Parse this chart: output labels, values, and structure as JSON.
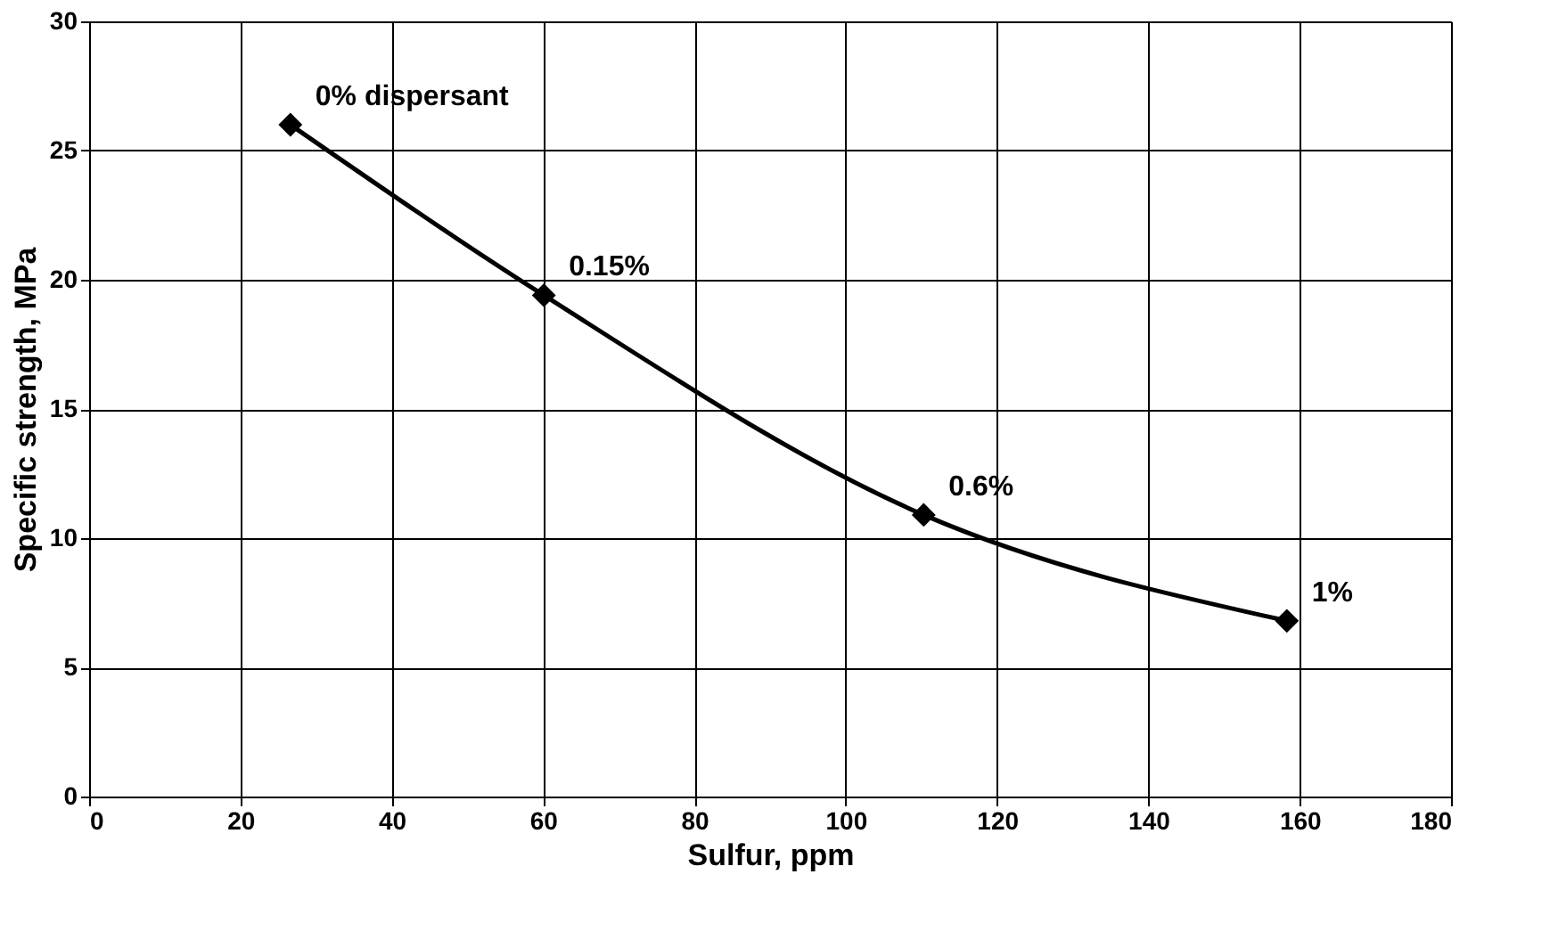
{
  "chart_data": {
    "type": "line",
    "xlabel": "Sulfur, ppm",
    "ylabel": "Specific strength, MPa",
    "x": [
      26.6,
      60.1,
      110.3,
      158.3
    ],
    "series": [
      {
        "color": "#000000",
        "values": [
          26.0,
          19.4,
          10.9,
          6.8
        ]
      }
    ],
    "xlim": [
      0,
      180
    ],
    "xticks": [
      0,
      20,
      40,
      60,
      80,
      100,
      120,
      140,
      160,
      180
    ],
    "ylim": [
      0,
      30
    ],
    "yticks": [
      0,
      5,
      10,
      15,
      20,
      25,
      30
    ],
    "grid": true,
    "marker": "diamond",
    "line_style": "solid",
    "annotations": [
      {
        "text": "0% dispersant",
        "x": 26.6,
        "y": 26.0
      },
      {
        "text": "0.15%",
        "x": 60.1,
        "y": 19.4
      },
      {
        "text": "0.6%",
        "x": 110.3,
        "y": 10.9
      },
      {
        "text": "1%",
        "x": 158.3,
        "y": 6.8
      }
    ]
  }
}
